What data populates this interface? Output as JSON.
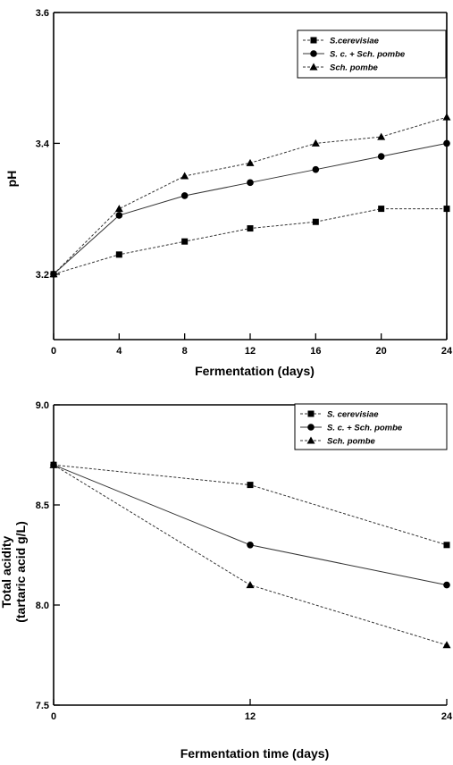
{
  "chart_data": [
    {
      "type": "line",
      "title": "",
      "xlabel": "Fermentation  (days)",
      "ylabel": "pH",
      "xlim": [
        0,
        24
      ],
      "ylim": [
        3.1,
        3.6
      ],
      "x_ticks": [
        "0",
        "4",
        "8",
        "12",
        "16",
        "20",
        "24"
      ],
      "y_ticks": [
        "3.2",
        "3.4",
        "3.6"
      ],
      "grid": false,
      "legend_position": "top-right",
      "x": [
        0,
        4,
        8,
        12,
        16,
        20,
        24
      ],
      "series": [
        {
          "name": "S.cerevisiae",
          "marker": "square",
          "values": [
            3.2,
            3.23,
            3.25,
            3.27,
            3.28,
            3.3,
            3.3
          ]
        },
        {
          "name": "S. c. + Sch. pombe",
          "marker": "circle",
          "values": [
            3.2,
            3.29,
            3.32,
            3.34,
            3.36,
            3.38,
            3.4
          ]
        },
        {
          "name": "Sch. pombe",
          "marker": "triangle",
          "values": [
            3.2,
            3.3,
            3.35,
            3.37,
            3.4,
            3.41,
            3.44
          ]
        }
      ]
    },
    {
      "type": "line",
      "title": "",
      "xlabel": "Fermentation time (days)",
      "ylabel_lines": [
        "Total acidity",
        "(tartaric acid g/L)"
      ],
      "xlim": [
        0,
        24
      ],
      "ylim": [
        7.5,
        9.0
      ],
      "x_ticks": [
        "0",
        "12",
        "24"
      ],
      "y_ticks": [
        "7.5",
        "8.0",
        "8.5",
        "9.0"
      ],
      "grid": false,
      "legend_position": "top-right",
      "x": [
        0,
        12,
        24
      ],
      "series": [
        {
          "name": "S. cerevisiae",
          "marker": "square",
          "values": [
            8.7,
            8.6,
            8.3
          ]
        },
        {
          "name": "S. c. + Sch. pombe",
          "marker": "circle",
          "values": [
            8.7,
            8.3,
            8.1
          ]
        },
        {
          "name": "Sch. pombe",
          "marker": "triangle",
          "values": [
            8.7,
            8.1,
            7.8
          ]
        }
      ]
    }
  ]
}
